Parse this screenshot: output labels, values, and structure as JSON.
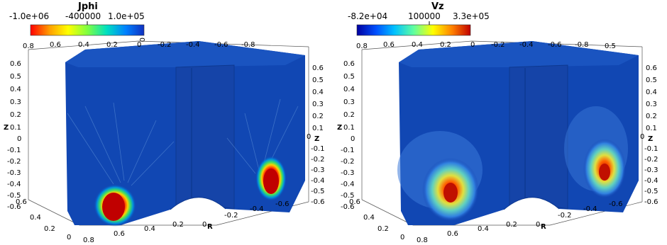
{
  "panels": [
    {
      "colorbar": {
        "title": "Jphi",
        "min_label": "-1.0e+06",
        "mid_label": "-400000",
        "max_label": "1.0e+05",
        "gradient": [
          "#ff0000",
          "#ffa000",
          "#ffff00",
          "#80ff40",
          "#00e0c0",
          "#0080ff",
          "#1030c0"
        ]
      },
      "top_ticks": [
        "0.8",
        "0.6",
        "0.4",
        "0.2",
        "0",
        "-0.2",
        "-0.4",
        "-0.6",
        "-0.8"
      ],
      "left_ticks": [
        "0.6",
        "0.5",
        "0.4",
        "0.3",
        "0.2",
        "0.1",
        "0",
        "-0.1",
        "-0.2",
        "-0.3",
        "-0.4",
        "-0.5",
        "-0.6"
      ],
      "right_ticks": [
        "0.6",
        "0.5",
        "0.4",
        "0.3",
        "0.2",
        "0.1",
        "0",
        "-0.1",
        "-0.2",
        "-0.3",
        "-0.4",
        "-0.5",
        "-0.6"
      ],
      "bottom_left_ticks": [
        "0.6",
        "0.4",
        "0.2",
        "0"
      ],
      "bottom_ticks": [
        "0.8",
        "0.6",
        "0.4",
        "0.2",
        "0",
        "-0.2",
        "-0.4",
        "-0.6"
      ],
      "top_corner_tick": "0",
      "axis_z": "Z",
      "axis_z_right": "Z",
      "axis_r": "R",
      "extra_top_right_tick": ""
    },
    {
      "colorbar": {
        "title": "Vz",
        "min_label": "-8.2e+04",
        "mid_label": "100000",
        "max_label": "3.3e+05",
        "gradient": [
          "#0000a0",
          "#0050ff",
          "#00c0ff",
          "#60ffa0",
          "#ffff00",
          "#ff8000",
          "#c00000"
        ]
      },
      "top_ticks": [
        "0.8",
        "0.6",
        "0.4",
        "0.2",
        "0",
        "-0.2",
        "-0.4",
        "-0.6",
        "-0.8"
      ],
      "left_ticks": [
        "0.6",
        "0.5",
        "0.4",
        "0.3",
        "0.2",
        "0.1",
        "0",
        "-0.1",
        "-0.2",
        "-0.3",
        "-0.4",
        "-0.5",
        "-0.6"
      ],
      "right_ticks": [
        "0.6",
        "0.5",
        "0.4",
        "0.3",
        "0.2",
        "0.1",
        "0",
        "-0.1",
        "-0.2",
        "-0.3",
        "-0.4",
        "-0.5",
        "-0.6"
      ],
      "bottom_left_ticks": [
        "0.6",
        "0.4",
        "0.2",
        "0"
      ],
      "bottom_ticks": [
        "0.8",
        "0.6",
        "0.4",
        "0.2",
        "0",
        "-0.2",
        "-0.4",
        "-0.6"
      ],
      "top_corner_tick": "",
      "axis_z": "Z",
      "axis_z_right": "Z",
      "axis_r": "R",
      "extra_top_right_tick": "0.5"
    }
  ]
}
